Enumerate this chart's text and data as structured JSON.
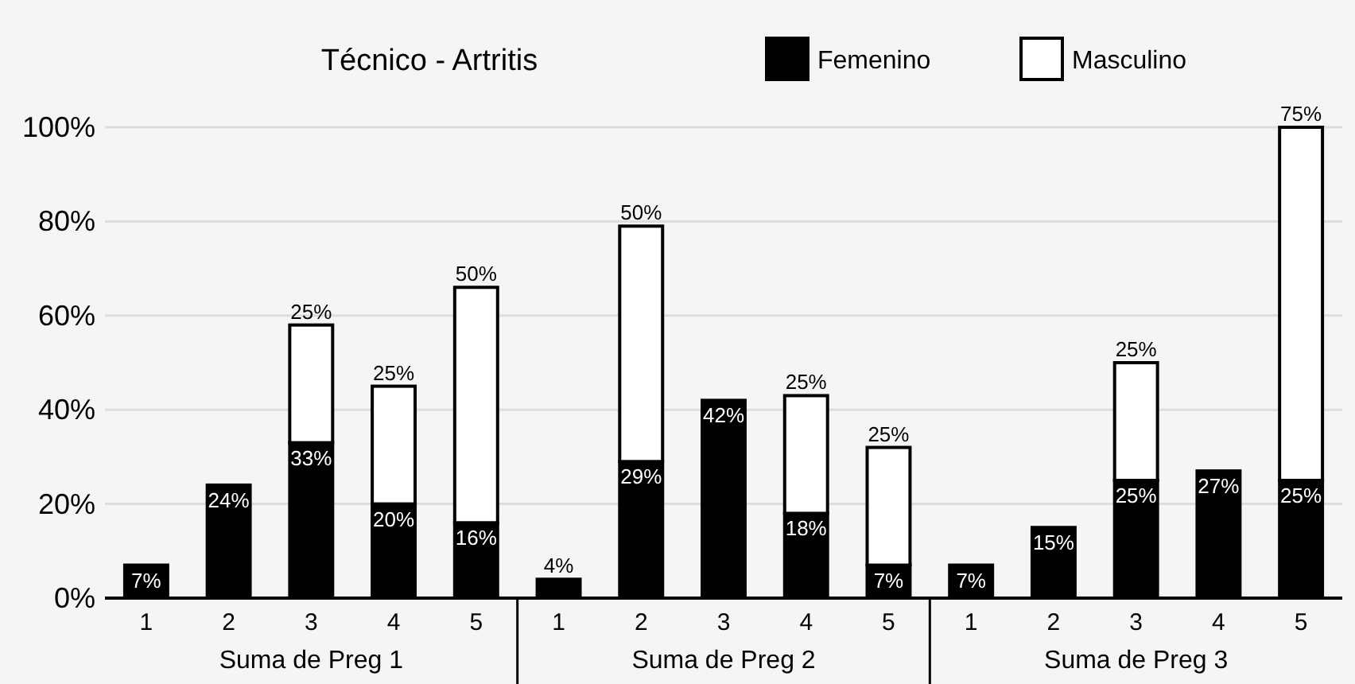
{
  "chart_data": {
    "type": "bar",
    "title": "Técnico - Artritis",
    "stacked": true,
    "categories": [
      "1",
      "2",
      "3",
      "4",
      "5",
      "1",
      "2",
      "3",
      "4",
      "5",
      "1",
      "2",
      "3",
      "4",
      "5"
    ],
    "series": [
      {
        "name": "Femenino",
        "color": "#000000",
        "values": [
          7,
          24,
          33,
          20,
          16,
          4,
          29,
          42,
          18,
          7,
          7,
          15,
          25,
          27,
          25
        ],
        "value_labels": [
          "7%",
          "24%",
          "33%",
          "20%",
          "16%",
          "4%",
          "29%",
          "42%",
          "18%",
          "7%",
          "7%",
          "15%",
          "25%",
          "27%",
          "25%"
        ]
      },
      {
        "name": "Masculino",
        "color": "#ffffff",
        "values": [
          null,
          null,
          25,
          25,
          50,
          null,
          50,
          null,
          25,
          25,
          null,
          null,
          25,
          null,
          75
        ],
        "value_labels": [
          null,
          null,
          "25%",
          "25%",
          "50%",
          null,
          "50%",
          null,
          "25%",
          "25%",
          null,
          null,
          "25%",
          null,
          "75%"
        ]
      }
    ],
    "ylim": [
      0,
      100
    ],
    "yticks": [
      {
        "value": 0,
        "label": "0%"
      },
      {
        "value": 20,
        "label": "20%"
      },
      {
        "value": 40,
        "label": "40%"
      },
      {
        "value": 60,
        "label": "60%"
      },
      {
        "value": 80,
        "label": "80%"
      },
      {
        "value": 100,
        "label": "100%"
      }
    ],
    "grid": "y",
    "legend": "top right",
    "annotations": [
      "Suma de Preg 1",
      "Suma de Preg 2",
      "Suma de Preg 3"
    ]
  }
}
